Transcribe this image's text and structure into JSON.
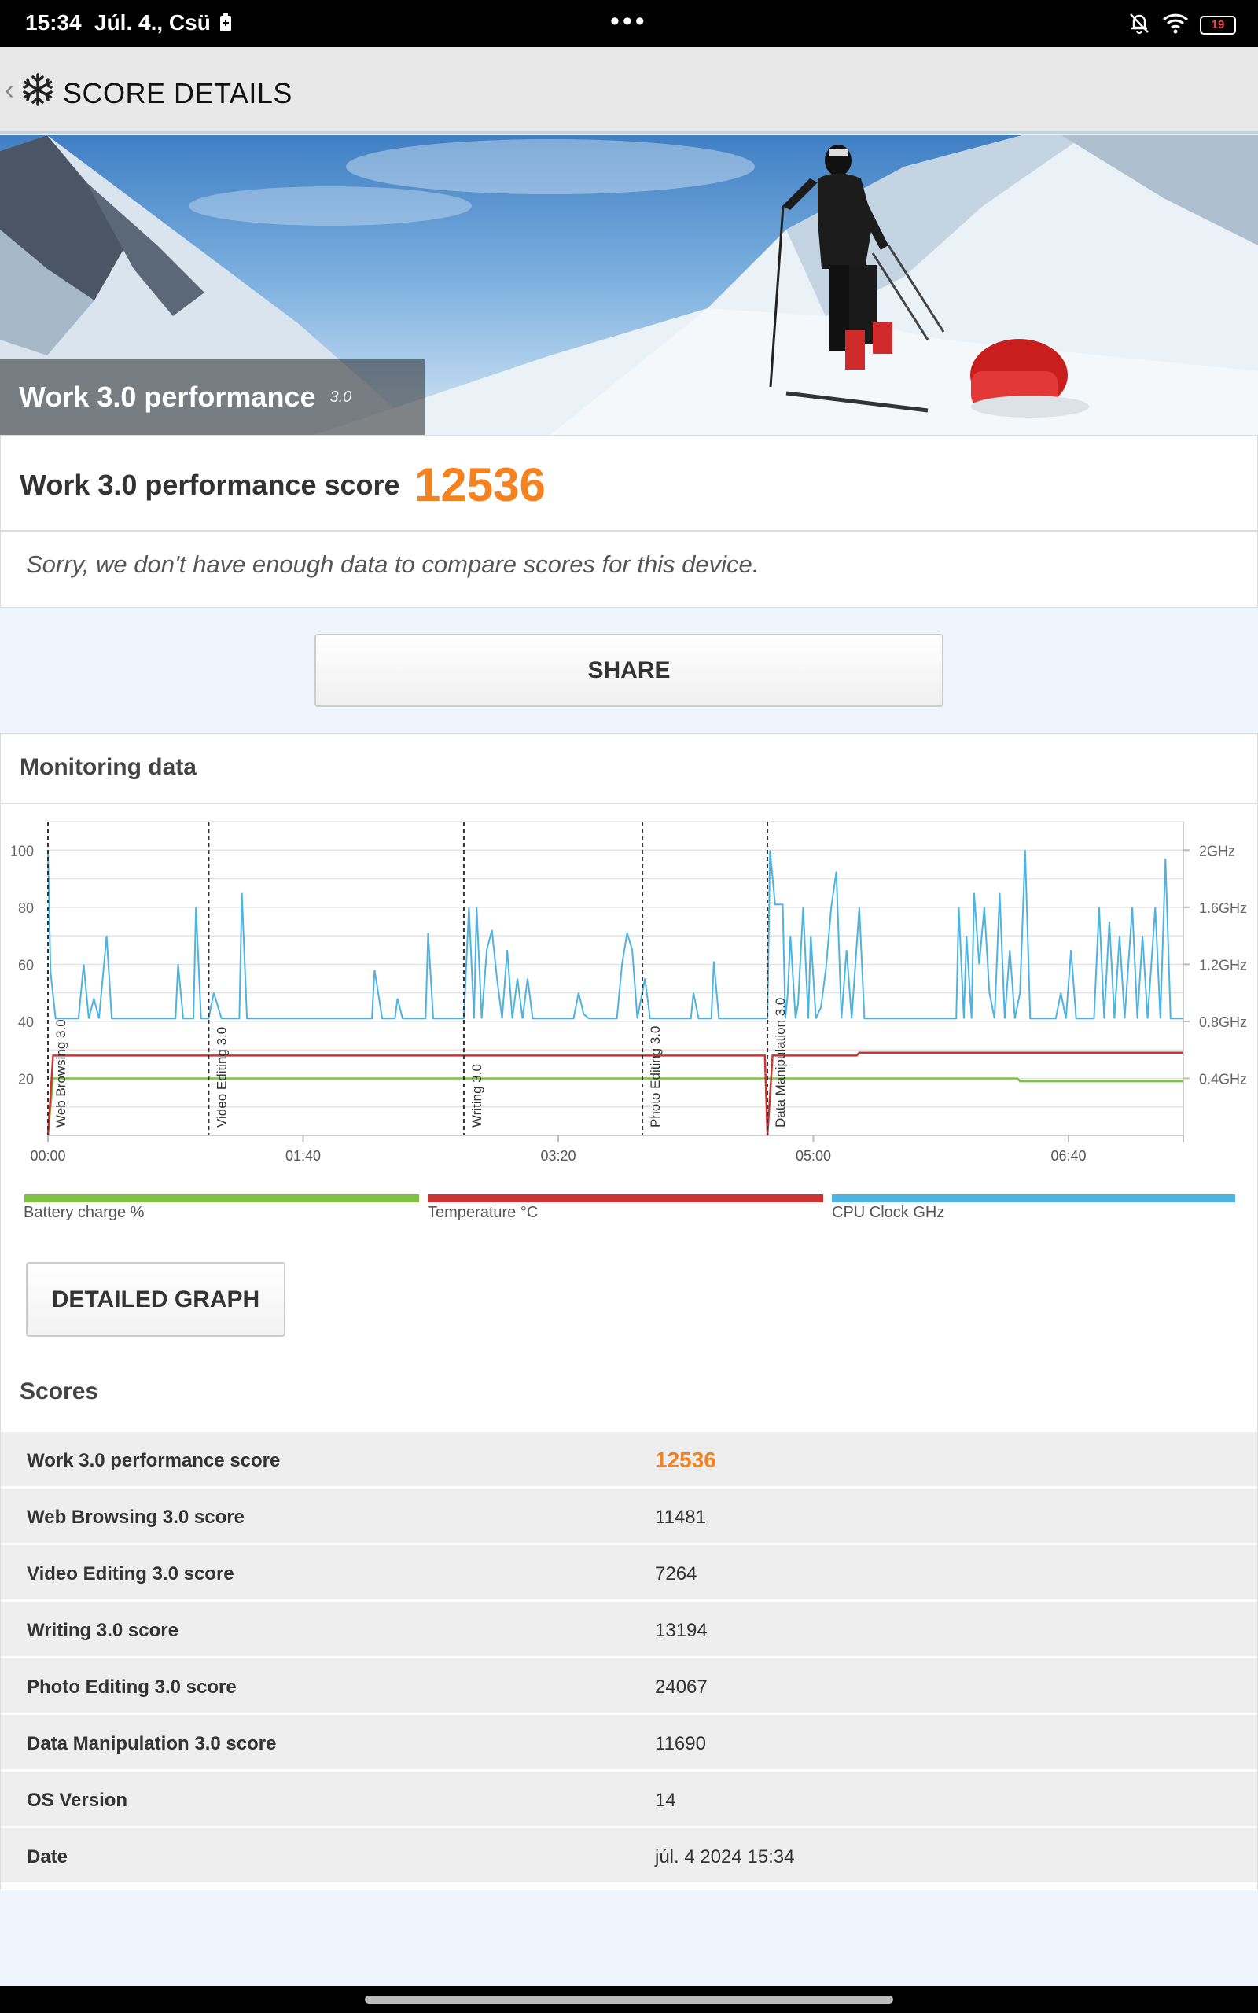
{
  "status": {
    "time": "15:34",
    "date": "Júl. 4., Csü",
    "dots": "•••",
    "battery": "19"
  },
  "app_bar": {
    "title": "SCORE DETAILS",
    "back_icon": "chevron-left-icon",
    "logo_icon": "snowflake-icon"
  },
  "hero": {
    "title": "Work 3.0 performance",
    "version": "3.0"
  },
  "summary": {
    "score_label": "Work 3.0 performance score",
    "score_value": "12536",
    "compare_note": "Sorry, we don't have enough data to compare scores for this device."
  },
  "share_label": "SHARE",
  "monitoring": {
    "title": "Monitoring data",
    "legend": [
      {
        "label": "Battery charge %",
        "color": "#7dc242"
      },
      {
        "label": "Temperature °C",
        "color": "#cc3333"
      },
      {
        "label": "CPU Clock GHz",
        "color": "#4eb3e0"
      }
    ],
    "detailed_graph_label": "DETAILED GRAPH"
  },
  "chart_data": {
    "type": "line",
    "x_ticks": [
      "00:00",
      "01:40",
      "03:20",
      "05:00",
      "06:40"
    ],
    "x_tick_seconds": [
      0,
      100,
      200,
      300,
      400
    ],
    "x_max_seconds": 445,
    "y_left_ticks": [
      "100",
      "80",
      "60",
      "40",
      "20"
    ],
    "y_left_values": [
      100,
      80,
      60,
      40,
      20
    ],
    "y_left_range": [
      0,
      110
    ],
    "y_right_ticks": [
      "2GHz",
      "1.6GHz",
      "1.2GHz",
      "0.8GHz",
      "0.4GHz"
    ],
    "y_right_values": [
      2.0,
      1.6,
      1.2,
      0.8,
      0.4
    ],
    "y_right_range": [
      0,
      2.2
    ],
    "grid": true,
    "sections": [
      {
        "label": "Web Browsing 3.0",
        "start": 0
      },
      {
        "label": "Video Editing 3.0",
        "start": 63
      },
      {
        "label": "Writing 3.0",
        "start": 163
      },
      {
        "label": "Photo Editing 3.0",
        "start": 233
      },
      {
        "label": "Data Manipulation 3.0",
        "start": 282
      }
    ],
    "series": [
      {
        "name": "Battery charge %",
        "color": "#7dc242",
        "points": [
          [
            0,
            0
          ],
          [
            2,
            20
          ],
          [
            380,
            20
          ],
          [
            381,
            19
          ],
          [
            445,
            19
          ]
        ]
      },
      {
        "name": "Temperature °C",
        "color": "#cc3333",
        "points": [
          [
            0,
            0
          ],
          [
            2,
            28
          ],
          [
            281,
            28
          ],
          [
            282,
            0
          ],
          [
            284,
            28
          ],
          [
            317,
            28
          ],
          [
            318,
            29
          ],
          [
            445,
            29
          ]
        ]
      },
      {
        "name": "CPU Clock GHz",
        "color": "#4eb3e0",
        "points": [
          [
            0,
            2.0
          ],
          [
            1,
            1.15
          ],
          [
            3,
            0.82
          ],
          [
            12,
            0.82
          ],
          [
            14,
            1.2
          ],
          [
            16,
            0.82
          ],
          [
            18,
            0.96
          ],
          [
            20,
            0.82
          ],
          [
            23,
            1.4
          ],
          [
            25,
            0.82
          ],
          [
            50,
            0.82
          ],
          [
            51,
            1.2
          ],
          [
            53,
            0.82
          ],
          [
            57,
            0.82
          ],
          [
            58,
            1.6
          ],
          [
            60,
            0.82
          ],
          [
            63,
            0.82
          ],
          [
            65,
            1.0
          ],
          [
            68,
            0.82
          ],
          [
            75,
            0.82
          ],
          [
            76,
            1.7
          ],
          [
            78,
            0.82
          ],
          [
            127,
            0.82
          ],
          [
            128,
            1.16
          ],
          [
            131,
            0.82
          ],
          [
            136,
            0.82
          ],
          [
            137,
            0.96
          ],
          [
            139,
            0.82
          ],
          [
            148,
            0.82
          ],
          [
            149,
            1.42
          ],
          [
            151,
            0.82
          ],
          [
            163,
            0.82
          ],
          [
            165,
            1.6
          ],
          [
            167,
            0.82
          ],
          [
            168,
            1.6
          ],
          [
            170,
            0.82
          ],
          [
            172,
            1.3
          ],
          [
            174,
            1.44
          ],
          [
            176,
            1.1
          ],
          [
            178,
            0.82
          ],
          [
            180,
            1.3
          ],
          [
            182,
            0.82
          ],
          [
            184,
            1.1
          ],
          [
            186,
            0.82
          ],
          [
            188,
            1.1
          ],
          [
            190,
            0.82
          ],
          [
            206,
            0.82
          ],
          [
            208,
            1.0
          ],
          [
            210,
            0.85
          ],
          [
            212,
            0.82
          ],
          [
            223,
            0.82
          ],
          [
            225,
            1.2
          ],
          [
            227,
            1.42
          ],
          [
            229,
            1.3
          ],
          [
            231,
            0.82
          ],
          [
            234,
            1.1
          ],
          [
            236,
            0.82
          ],
          [
            252,
            0.82
          ],
          [
            253,
            1.0
          ],
          [
            255,
            0.82
          ],
          [
            260,
            0.82
          ],
          [
            261,
            1.22
          ],
          [
            263,
            0.82
          ],
          [
            282,
            0.82
          ],
          [
            283,
            2.0
          ],
          [
            285,
            1.62
          ],
          [
            288,
            1.62
          ],
          [
            289,
            0.82
          ],
          [
            290,
            1.0
          ],
          [
            291,
            1.4
          ],
          [
            293,
            0.82
          ],
          [
            294,
            0.92
          ],
          [
            296,
            1.6
          ],
          [
            298,
            0.82
          ],
          [
            299,
            1.4
          ],
          [
            301,
            0.82
          ],
          [
            303,
            0.9
          ],
          [
            305,
            1.18
          ],
          [
            307,
            1.6
          ],
          [
            309,
            1.85
          ],
          [
            311,
            0.82
          ],
          [
            313,
            1.3
          ],
          [
            315,
            0.82
          ],
          [
            318,
            1.6
          ],
          [
            320,
            0.82
          ],
          [
            356,
            0.82
          ],
          [
            357,
            1.6
          ],
          [
            359,
            0.82
          ],
          [
            360,
            1.4
          ],
          [
            362,
            0.82
          ],
          [
            363,
            1.7
          ],
          [
            365,
            1.2
          ],
          [
            367,
            1.6
          ],
          [
            369,
            1.0
          ],
          [
            371,
            0.82
          ],
          [
            373,
            1.7
          ],
          [
            375,
            0.82
          ],
          [
            377,
            1.3
          ],
          [
            379,
            0.82
          ],
          [
            381,
            1.0
          ],
          [
            383,
            2.0
          ],
          [
            385,
            0.82
          ],
          [
            395,
            0.82
          ],
          [
            397,
            1.0
          ],
          [
            399,
            0.82
          ],
          [
            401,
            1.3
          ],
          [
            403,
            0.82
          ],
          [
            410,
            0.82
          ],
          [
            412,
            1.6
          ],
          [
            414,
            0.82
          ],
          [
            416,
            1.5
          ],
          [
            418,
            0.82
          ],
          [
            420,
            1.4
          ],
          [
            422,
            0.82
          ],
          [
            425,
            1.6
          ],
          [
            427,
            0.82
          ],
          [
            429,
            1.4
          ],
          [
            431,
            0.82
          ],
          [
            434,
            1.6
          ],
          [
            436,
            0.82
          ],
          [
            438,
            1.94
          ],
          [
            440,
            0.82
          ],
          [
            445,
            0.82
          ]
        ]
      }
    ]
  },
  "scores": {
    "title": "Scores",
    "rows": [
      {
        "name": "Work 3.0 performance score",
        "value": "12536"
      },
      {
        "name": "Web Browsing 3.0 score",
        "value": "11481"
      },
      {
        "name": "Video Editing 3.0 score",
        "value": "7264"
      },
      {
        "name": "Writing 3.0 score",
        "value": "13194"
      },
      {
        "name": "Photo Editing 3.0 score",
        "value": "24067"
      },
      {
        "name": "Data Manipulation 3.0 score",
        "value": "11690"
      },
      {
        "name": "OS Version",
        "value": "14"
      },
      {
        "name": "Date",
        "value": "júl. 4 2024 15:34"
      }
    ]
  }
}
